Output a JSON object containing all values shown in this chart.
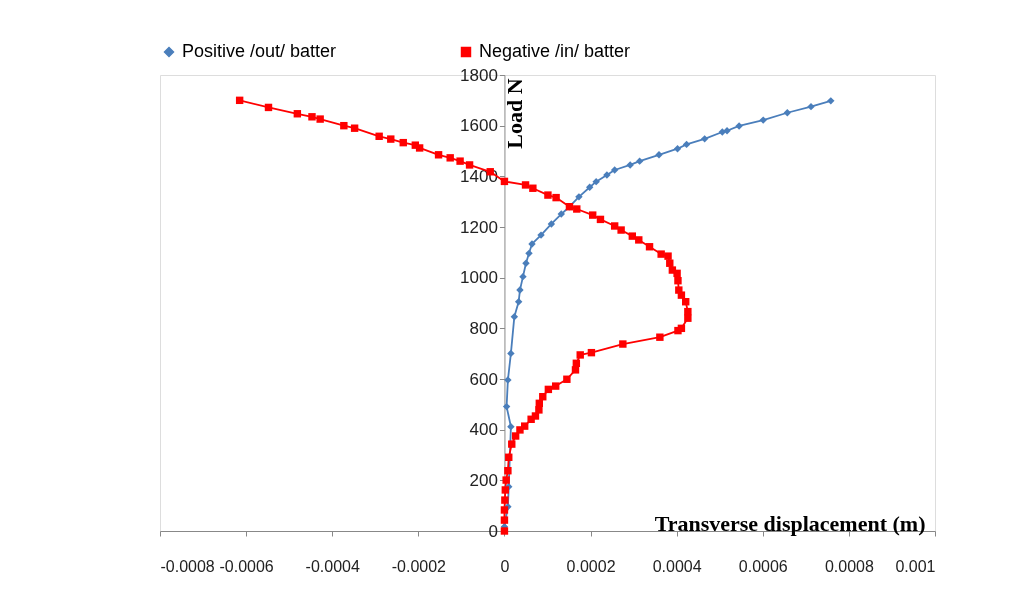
{
  "chart_data": {
    "type": "line",
    "xlabel": "Transverse displacement (m)",
    "ylabel": "Load N",
    "xlim": [
      -0.0008,
      0.001
    ],
    "xticks": [
      -0.0008,
      -0.0006,
      -0.0004,
      -0.0002,
      0,
      0.0002,
      0.0004,
      0.0006,
      0.0008,
      0.001
    ],
    "ylim": [
      0,
      1800
    ],
    "yticks": [
      0,
      200,
      400,
      600,
      800,
      1000,
      1200,
      1400,
      1600,
      1800
    ],
    "grid": false,
    "legend": "top",
    "line_style": "solid",
    "series": [
      {
        "name": "Positive /out/ batter",
        "color": "#4a7ebb",
        "marker": "diamond",
        "x": [
          0.000758,
          0.000712,
          0.000657,
          0.000601,
          0.000545,
          0.000517,
          0.000506,
          0.000465,
          0.000423,
          0.000402,
          0.000359,
          0.000314,
          0.000292,
          0.000256,
          0.000238,
          0.000213,
          0.000198,
          0.000173,
          0.000151,
          0.000132,
          0.000109,
          8.5e-05,
          6.4e-05,
          5.7e-05,
          5e-05,
          4.3e-05,
          3.6e-05,
          3.3e-05,
          2.3e-05,
          1.5e-05,
          8e-06,
          5e-06,
          1.5e-05,
          null,
          null,
          1e-05,
          8e-06,
          0
        ],
        "values": [
          1698,
          1675,
          1651,
          1622,
          1599,
          1580,
          1575,
          1548,
          1526,
          1509,
          1485,
          1460,
          1445,
          1425,
          1405,
          1379,
          1357,
          1319,
          1280,
          1251,
          1212,
          1168,
          1133,
          1096,
          1057,
          1004,
          951,
          905,
          846,
          701,
          596,
          491,
          412,
          null,
          null,
          175,
          96,
          17
        ]
      },
      {
        "name": "Negative /in/ batter",
        "color": "#ff0000",
        "marker": "square",
        "x": [
          -0.000615,
          -0.000548,
          -0.000481,
          -0.000447,
          -0.000428,
          -0.000373,
          -0.000348,
          -0.000291,
          -0.000264,
          -0.000235,
          -0.000207,
          -0.000197,
          -0.000153,
          -0.000126,
          -0.000103,
          -8.1e-05,
          -3.3e-05,
          0,
          4.9e-05,
          6.6e-05,
          0.000101,
          0.00012,
          0.000151,
          0.000168,
          0.000205,
          0.000223,
          0.000256,
          0.000271,
          0.000297,
          0.000312,
          0.000337,
          0.000364,
          0.00038,
          0.000384,
          0.00039,
          0.000401,
          0.000403,
          0.000405,
          0.000411,
          0.000421,
          0.000426,
          0.000426,
          0.000411,
          0.000403,
          0.000361,
          0.000275,
          0.000202,
          0.000176,
          0.000167,
          0.000165,
          0.000145,
          0.000119,
          0.000102,
          8.9e-05,
          8.1e-05,
          8e-05,
          7.2e-05,
          6.2e-05,
          4.7e-05,
          3.6e-05,
          2.6e-05,
          1.7e-05,
          1e-05,
          8e-06,
          4e-06,
          2e-06,
          1e-06,
          0,
          0,
          0
        ],
        "values": [
          1700,
          1672,
          1647,
          1635,
          1626,
          1600,
          1590,
          1558,
          1547,
          1533,
          1523,
          1512,
          1485,
          1473,
          1460,
          1445,
          1418,
          1380,
          1366,
          1353,
          1326,
          1316,
          1280,
          1271,
          1247,
          1230,
          1204,
          1188,
          1164,
          1149,
          1122,
          1093,
          1085,
          1057,
          1030,
          1017,
          988,
          951,
          931,
          905,
          866,
          840,
          800,
          791,
          765,
          738,
          704,
          695,
          662,
          636,
          599,
          572,
          559,
          530,
          504,
          478,
          454,
          441,
          414,
          399,
          375,
          343,
          291,
          238,
          201,
          162,
          122,
          83,
          43,
          0
        ]
      }
    ]
  }
}
